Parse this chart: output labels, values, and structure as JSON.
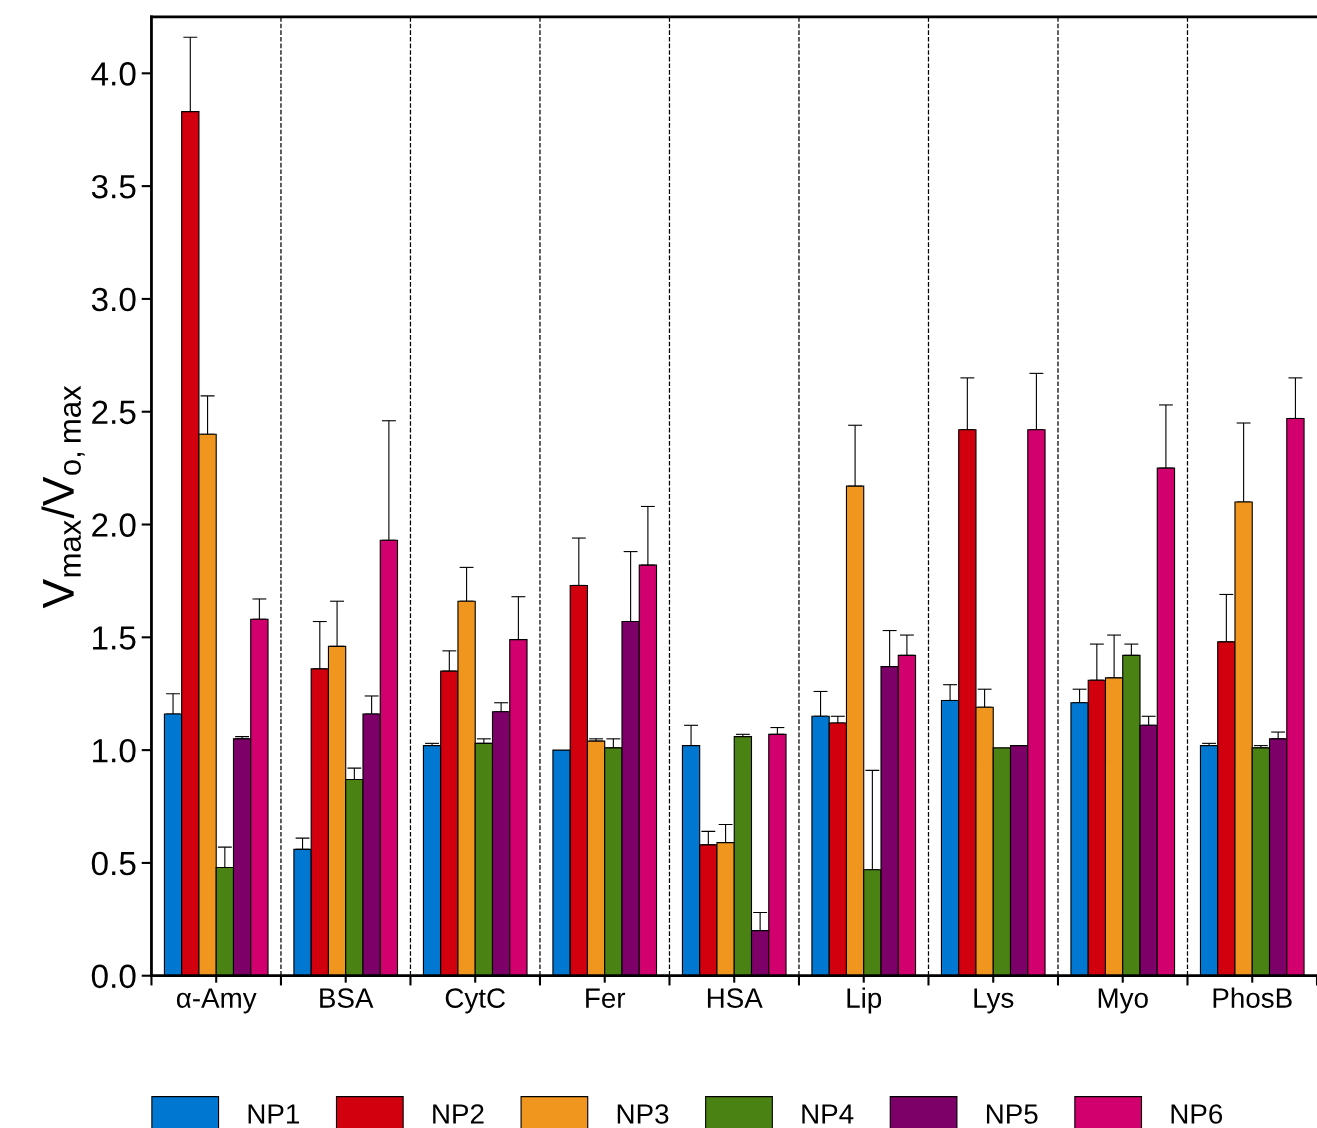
{
  "chart_data": {
    "type": "bar",
    "ylabel": "V$_{max}$/V$_{o,max}$",
    "categories": [
      "α-Amy",
      "BSA",
      "CytC",
      "Fer",
      "HSA",
      "Lip",
      "Lys",
      "Myo",
      "PhosB"
    ],
    "ylim": [
      0,
      4.25
    ],
    "yticks": [
      {
        "value": 0,
        "label": "0.0"
      },
      0.5,
      {
        "value": 1,
        "label": "1.0"
      },
      1.5,
      {
        "value": 2,
        "label": "2.0"
      },
      2.5,
      {
        "value": 3,
        "label": "3.0"
      },
      3.5,
      {
        "value": 4,
        "label": "4.0"
      }
    ],
    "legend": "bottom",
    "grid": false,
    "series": [
      {
        "name": "NP1",
        "color": "#0078d2",
        "values": [
          1.16,
          0.56,
          1.02,
          1.0,
          1.02,
          1.15,
          1.22,
          1.21,
          1.02
        ],
        "errors": [
          [
            1.16,
            1.25
          ],
          [
            0.56,
            0.61
          ],
          [
            1.02,
            1.03
          ],
          null,
          [
            1.02,
            1.11
          ],
          [
            1.15,
            1.26
          ],
          [
            1.22,
            1.29
          ],
          [
            1.21,
            1.27
          ],
          [
            1.02,
            1.03
          ]
        ]
      },
      {
        "name": "NP2",
        "color": "#d2000f",
        "values": [
          3.83,
          1.36,
          1.35,
          1.73,
          0.58,
          1.12,
          2.42,
          1.31,
          1.48
        ],
        "errors": [
          [
            3.83,
            4.16
          ],
          [
            1.36,
            1.57
          ],
          [
            1.35,
            1.44
          ],
          [
            1.73,
            1.94
          ],
          [
            0.58,
            0.64
          ],
          [
            1.12,
            1.15
          ],
          [
            2.42,
            2.65
          ],
          [
            1.31,
            1.47
          ],
          [
            1.48,
            1.69
          ]
        ]
      },
      {
        "name": "NP3",
        "color": "#f0961e",
        "values": [
          2.4,
          1.46,
          1.66,
          1.04,
          0.59,
          2.17,
          1.19,
          1.32,
          2.1
        ],
        "errors": [
          [
            2.4,
            2.57
          ],
          [
            1.46,
            1.66
          ],
          [
            1.66,
            1.81
          ],
          [
            1.04,
            1.05
          ],
          [
            0.59,
            0.67
          ],
          [
            2.17,
            2.44
          ],
          [
            1.19,
            1.27
          ],
          [
            1.32,
            1.51
          ],
          [
            2.1,
            2.45
          ]
        ]
      },
      {
        "name": "NP4",
        "color": "#4b8214",
        "values": [
          0.48,
          0.87,
          1.03,
          1.01,
          1.06,
          0.47,
          1.01,
          1.42,
          1.01
        ],
        "errors": [
          [
            0.48,
            0.57
          ],
          [
            0.87,
            0.92
          ],
          [
            1.03,
            1.05
          ],
          [
            1.01,
            1.05
          ],
          [
            1.06,
            1.07
          ],
          [
            0.47,
            0.91
          ],
          null,
          [
            1.42,
            1.47
          ],
          [
            1.01,
            1.02
          ]
        ]
      },
      {
        "name": "NP5",
        "color": "#7d0069",
        "values": [
          1.05,
          1.16,
          1.17,
          1.57,
          0.2,
          1.37,
          1.02,
          1.11,
          1.05
        ],
        "errors": [
          [
            1.05,
            1.06
          ],
          [
            1.16,
            1.24
          ],
          [
            1.17,
            1.21
          ],
          [
            1.57,
            1.88
          ],
          [
            0.2,
            0.28
          ],
          [
            1.37,
            1.53
          ],
          null,
          [
            1.11,
            1.15
          ],
          [
            1.05,
            1.08
          ]
        ]
      },
      {
        "name": "NP6",
        "color": "#d2006e",
        "values": [
          1.58,
          1.93,
          1.49,
          1.82,
          1.07,
          1.42,
          2.42,
          2.25,
          2.47
        ],
        "errors": [
          [
            1.58,
            1.67
          ],
          [
            1.93,
            2.46
          ],
          [
            1.49,
            1.68
          ],
          [
            1.82,
            2.08
          ],
          [
            1.07,
            1.1
          ],
          [
            1.42,
            1.51
          ],
          [
            2.42,
            2.67
          ],
          [
            2.25,
            2.53
          ],
          [
            2.47,
            2.65
          ]
        ]
      }
    ]
  }
}
